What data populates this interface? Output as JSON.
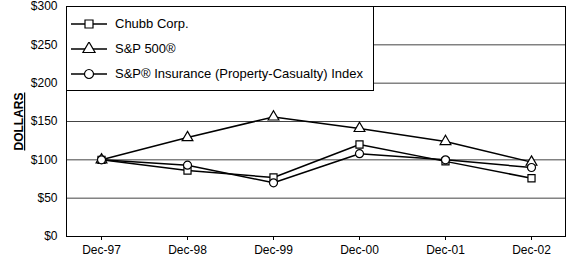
{
  "chart_data": {
    "type": "line",
    "y_label": "DOLLARS",
    "categories": [
      "Dec-97",
      "Dec-98",
      "Dec-99",
      "Dec-00",
      "Dec-01",
      "Dec-02"
    ],
    "series": [
      {
        "name": "Chubb Corp.",
        "color": "#000000",
        "marker": "square",
        "values": [
          100,
          86,
          77,
          120,
          98,
          76
        ]
      },
      {
        "name": "S&P 500®",
        "color": "#000000",
        "marker": "triangle",
        "values": [
          100,
          129,
          156,
          141,
          124,
          97
        ]
      },
      {
        "name": "S&P® Insurance (Property-Casualty) Index",
        "color": "#000000",
        "marker": "circle",
        "values": [
          100,
          93,
          70,
          108,
          100,
          90
        ]
      }
    ],
    "ylim": [
      0,
      300
    ],
    "yticks": [
      {
        "value": 0,
        "label": "$0"
      },
      {
        "value": 50,
        "label": "$50"
      },
      {
        "value": 100,
        "label": "$100"
      },
      {
        "value": 150,
        "label": "$150"
      },
      {
        "value": 200,
        "label": "$200"
      },
      {
        "value": 250,
        "label": "$250"
      },
      {
        "value": 300,
        "label": "$300"
      }
    ],
    "grid": true,
    "legend": "top-left"
  }
}
